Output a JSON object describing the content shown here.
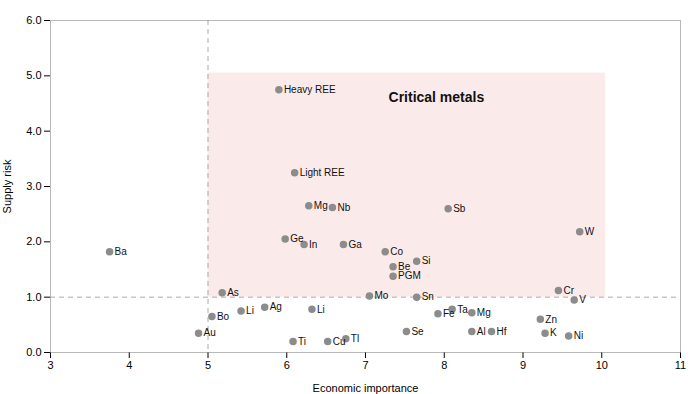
{
  "chart_data": {
    "type": "scatter",
    "xlabel": "Economic importance",
    "ylabel": "Supply risk",
    "labels": [
      "Heavy REE",
      "Light REE",
      "Mg",
      "Nb",
      "Ge",
      "In",
      "Ga",
      "Sb",
      "Co",
      "Be",
      "Si",
      "PGM",
      "W",
      "Ba",
      "As",
      "Bo",
      "Li",
      "Ag",
      "Au",
      "Ti",
      "Li",
      "Mo",
      "Cu",
      "Tl",
      "Sn",
      "Se",
      "Fe",
      "Ta",
      "Mg",
      "Al",
      "Hf",
      "Zn",
      "K",
      "Ni",
      "Cr",
      "V"
    ],
    "x": [
      5.9,
      6.1,
      6.28,
      6.58,
      5.98,
      6.22,
      6.72,
      8.05,
      7.25,
      7.35,
      7.65,
      7.35,
      9.72,
      3.75,
      5.18,
      5.05,
      5.42,
      5.72,
      4.88,
      6.08,
      6.32,
      7.05,
      6.52,
      6.75,
      7.65,
      7.52,
      7.92,
      8.1,
      8.35,
      8.35,
      8.6,
      9.22,
      9.28,
      9.58,
      9.45,
      9.65
    ],
    "y": [
      4.75,
      3.25,
      2.65,
      2.62,
      2.05,
      1.95,
      1.95,
      2.6,
      1.82,
      1.55,
      1.65,
      1.38,
      2.18,
      1.82,
      1.08,
      0.65,
      0.75,
      0.82,
      0.35,
      0.2,
      0.78,
      1.02,
      0.2,
      0.25,
      1.0,
      0.38,
      0.7,
      0.78,
      0.72,
      0.38,
      0.38,
      0.6,
      0.35,
      0.3,
      1.12,
      0.95
    ],
    "color": "#8c8c8c",
    "region": {
      "x0": 5.0,
      "y0": 1.0,
      "x1": 10.05,
      "y1": 5.05,
      "color": "#f7d8d8"
    },
    "annotation": {
      "text": "Critical metals",
      "x": 7.9,
      "y": 4.7
    },
    "vline_x": 5.0,
    "hline_y": 1.0,
    "xlim": [
      3,
      11
    ],
    "ylim": [
      0,
      6
    ],
    "xticks": [
      3,
      4,
      5,
      6,
      7,
      8,
      9,
      10,
      11
    ],
    "yticks": [
      0,
      1,
      2,
      3,
      4,
      5,
      6
    ]
  }
}
